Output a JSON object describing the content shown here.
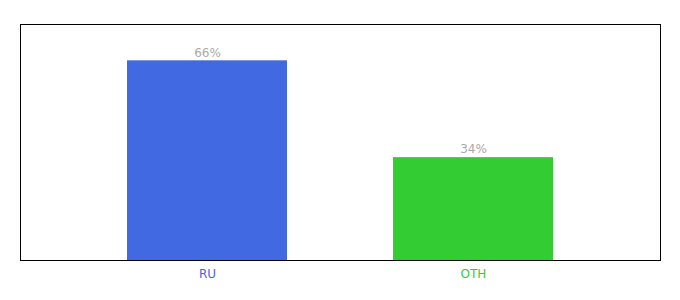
{
  "chart_data": {
    "type": "bar",
    "categories": [
      "RU",
      "OTH"
    ],
    "values": [
      66,
      34
    ],
    "value_labels": [
      "66%",
      "34%"
    ],
    "colors": [
      "#4169e1",
      "#33cc33"
    ],
    "ylim": [
      0,
      78
    ],
    "yticks": [],
    "tick_labels": "x",
    "data_labels": true
  }
}
